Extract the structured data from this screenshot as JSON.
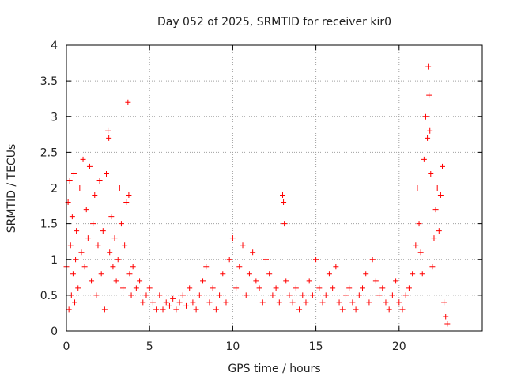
{
  "chart_data": {
    "type": "scatter",
    "title": "Day 052 of 2025, SRMTID for receiver kir0",
    "xlabel": "GPS time / hours",
    "ylabel": "SRMTID / TECUs",
    "xlim": [
      0,
      25
    ],
    "ylim": [
      0,
      4
    ],
    "xticks": [
      0,
      5,
      10,
      15,
      20
    ],
    "yticks": [
      0,
      0.5,
      1,
      1.5,
      2,
      2.5,
      3,
      3.5,
      4
    ],
    "xtick_labels": [
      "0",
      "5",
      "10",
      "15",
      "20"
    ],
    "ytick_labels": [
      "0",
      "0.5",
      "1",
      "1.5",
      "2",
      "2.5",
      "3",
      "3.5",
      "4"
    ],
    "grid": true,
    "marker": "+",
    "color": "#ff0000",
    "series": [
      {
        "name": "SRMTID",
        "x": [
          0.0,
          0.1,
          0.15,
          0.2,
          0.25,
          0.3,
          0.35,
          0.4,
          0.45,
          0.5,
          0.55,
          0.6,
          0.7,
          0.8,
          0.9,
          1.0,
          1.1,
          1.2,
          1.3,
          1.4,
          1.5,
          1.6,
          1.7,
          1.8,
          1.9,
          2.0,
          2.1,
          2.2,
          2.3,
          2.4,
          2.5,
          2.55,
          2.6,
          2.7,
          2.8,
          2.9,
          3.0,
          3.1,
          3.2,
          3.3,
          3.4,
          3.5,
          3.6,
          3.7,
          3.75,
          3.8,
          3.9,
          4.0,
          4.2,
          4.4,
          4.6,
          4.8,
          5.0,
          5.2,
          5.4,
          5.6,
          5.8,
          6.0,
          6.2,
          6.4,
          6.6,
          6.8,
          7.0,
          7.2,
          7.4,
          7.6,
          7.8,
          8.0,
          8.2,
          8.4,
          8.6,
          8.8,
          9.0,
          9.2,
          9.4,
          9.6,
          9.8,
          10.0,
          10.2,
          10.4,
          10.6,
          10.8,
          11.0,
          11.2,
          11.4,
          11.6,
          11.8,
          12.0,
          12.2,
          12.4,
          12.6,
          12.8,
          13.0,
          13.05,
          13.1,
          13.2,
          13.4,
          13.6,
          13.8,
          14.0,
          14.2,
          14.4,
          14.6,
          14.8,
          15.0,
          15.2,
          15.4,
          15.6,
          15.8,
          16.0,
          16.2,
          16.4,
          16.6,
          16.8,
          17.0,
          17.2,
          17.4,
          17.6,
          17.8,
          18.0,
          18.2,
          18.4,
          18.6,
          18.8,
          19.0,
          19.2,
          19.4,
          19.6,
          19.8,
          20.0,
          20.2,
          20.4,
          20.6,
          20.8,
          21.0,
          21.1,
          21.2,
          21.3,
          21.4,
          21.5,
          21.6,
          21.7,
          21.75,
          21.8,
          21.85,
          21.9,
          22.0,
          22.1,
          22.2,
          22.3,
          22.4,
          22.5,
          22.6,
          22.7,
          22.8,
          22.9
        ],
        "y": [
          0.9,
          1.8,
          0.3,
          2.1,
          1.2,
          0.5,
          1.6,
          0.8,
          2.2,
          0.4,
          1.0,
          1.4,
          0.6,
          2.0,
          1.1,
          2.4,
          0.9,
          1.7,
          1.3,
          2.3,
          0.7,
          1.5,
          1.9,
          0.5,
          1.2,
          2.1,
          0.8,
          1.4,
          0.3,
          2.2,
          2.8,
          2.7,
          1.1,
          1.6,
          0.9,
          1.3,
          0.7,
          1.0,
          2.0,
          1.5,
          0.6,
          1.2,
          1.8,
          3.2,
          1.9,
          0.8,
          0.5,
          0.9,
          0.6,
          0.7,
          0.4,
          0.5,
          0.6,
          0.4,
          0.3,
          0.5,
          0.3,
          0.4,
          0.35,
          0.45,
          0.3,
          0.4,
          0.5,
          0.35,
          0.6,
          0.4,
          0.3,
          0.5,
          0.7,
          0.9,
          0.4,
          0.6,
          0.3,
          0.5,
          0.8,
          0.4,
          1.0,
          1.3,
          0.6,
          0.9,
          1.2,
          0.5,
          0.8,
          1.1,
          0.7,
          0.6,
          0.4,
          1.0,
          0.8,
          0.5,
          0.6,
          0.4,
          1.9,
          1.8,
          1.5,
          0.7,
          0.5,
          0.4,
          0.6,
          0.3,
          0.5,
          0.4,
          0.7,
          0.5,
          1.0,
          0.6,
          0.4,
          0.5,
          0.8,
          0.6,
          0.9,
          0.4,
          0.3,
          0.5,
          0.6,
          0.4,
          0.3,
          0.5,
          0.6,
          0.8,
          0.4,
          1.0,
          0.7,
          0.5,
          0.6,
          0.4,
          0.3,
          0.5,
          0.7,
          0.4,
          0.3,
          0.5,
          0.6,
          0.8,
          1.2,
          2.0,
          1.5,
          1.1,
          0.8,
          2.4,
          3.0,
          2.7,
          3.7,
          3.3,
          2.8,
          2.2,
          0.9,
          1.3,
          1.7,
          2.0,
          1.4,
          1.9,
          2.3,
          0.4,
          0.2,
          0.1
        ]
      }
    ]
  }
}
